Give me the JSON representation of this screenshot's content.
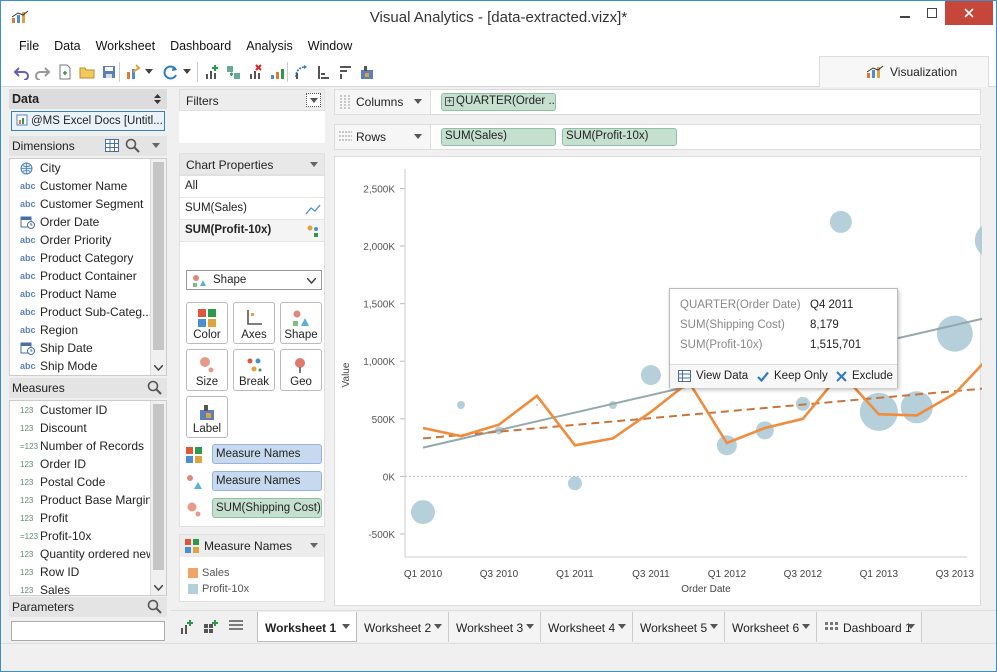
{
  "window": {
    "title": "Visual Analytics - [data-extracted.vizx]*"
  },
  "menu": [
    "File",
    "Data",
    "Worksheet",
    "Dashboard",
    "Analysis",
    "Window"
  ],
  "viz_tab": "Visualization",
  "left": {
    "data_header": "Data",
    "datasource": "@MS Excel Docs [Untitl...",
    "dimensions_header": "Dimensions",
    "dimensions": [
      {
        "type": "geo",
        "label": "City"
      },
      {
        "type": "abc",
        "label": "Customer Name"
      },
      {
        "type": "abc",
        "label": "Customer Segment"
      },
      {
        "type": "date",
        "label": "Order Date"
      },
      {
        "type": "abc",
        "label": "Order Priority"
      },
      {
        "type": "abc",
        "label": "Product Category"
      },
      {
        "type": "abc",
        "label": "Product Container"
      },
      {
        "type": "abc",
        "label": "Product Name"
      },
      {
        "type": "abc",
        "label": "Product Sub-Categ..."
      },
      {
        "type": "abc",
        "label": "Region"
      },
      {
        "type": "date",
        "label": "Ship Date"
      },
      {
        "type": "abc",
        "label": "Ship Mode"
      }
    ],
    "measures_header": "Measures",
    "measures": [
      {
        "type": "123",
        "label": "Customer ID"
      },
      {
        "type": "123",
        "label": "Discount"
      },
      {
        "type": "calc",
        "label": "Number of Records"
      },
      {
        "type": "123",
        "label": "Order ID"
      },
      {
        "type": "123",
        "label": "Postal Code"
      },
      {
        "type": "123",
        "label": "Product Base Margin"
      },
      {
        "type": "123",
        "label": "Profit"
      },
      {
        "type": "calc",
        "label": "Profit-10x"
      },
      {
        "type": "123",
        "label": "Quantity ordered new"
      },
      {
        "type": "123",
        "label": "Row ID"
      },
      {
        "type": "123",
        "label": "Sales"
      }
    ],
    "parameters_header": "Parameters"
  },
  "middle": {
    "filters": "Filters",
    "chart_properties": "Chart Properties",
    "all": "All",
    "sum_sales": "SUM(Sales)",
    "sum_profit": "SUM(Profit-10x)",
    "shape_select": "Shape",
    "marks": {
      "color": "Color",
      "axes": "Axes",
      "shape": "Shape",
      "size": "Size",
      "break": "Break",
      "geo": "Geo",
      "label": "Label"
    },
    "pills": [
      "Measure Names",
      "Measure Names",
      "SUM(Shipping Cost)"
    ],
    "legend_title": "Measure Names",
    "legend": [
      {
        "label": "Sales",
        "color": "#f0a468"
      },
      {
        "label": "Profit-10x",
        "color": "#b3cfd8"
      }
    ]
  },
  "shelves": {
    "columns_label": "Columns",
    "columns_pill": "QUARTER(Order ...",
    "rows_label": "Rows",
    "rows_pills": [
      "SUM(Sales)",
      "SUM(Profit-10x)"
    ]
  },
  "chart_data": {
    "type": "line",
    "xlabel": "Order Date",
    "ylabel": "Value",
    "categories": [
      "Q1 2010",
      "Q2 2010",
      "Q3 2010",
      "Q4 2010",
      "Q1 2011",
      "Q2 2011",
      "Q3 2011",
      "Q4 2011",
      "Q1 2012",
      "Q2 2012",
      "Q3 2012",
      "Q4 2012",
      "Q1 2013",
      "Q2 2013",
      "Q3 2013",
      "Q4 2013"
    ],
    "x_tick_labels": [
      "Q1 2010",
      "Q3 2010",
      "Q1 2011",
      "Q3 2011",
      "Q1 2012",
      "Q3 2012",
      "Q1 2013",
      "Q3 2013"
    ],
    "y_ticks": [
      "2,500K",
      "2,000K",
      "1,500K",
      "1,000K",
      "500K",
      "0K",
      "-500K"
    ],
    "ylim": [
      -700000,
      2600000
    ],
    "series": [
      {
        "name": "Sales",
        "color": "#f08c3c",
        "values": [
          420000,
          350000,
          450000,
          700000,
          270000,
          330000,
          560000,
          820000,
          290000,
          420000,
          500000,
          900000,
          540000,
          530000,
          720000,
          1070000
        ]
      },
      {
        "name": "Profit-10x",
        "color": "#a8c8d4",
        "marks": "circles",
        "values": [
          -310000,
          620000,
          400000,
          620000,
          -60000,
          620000,
          880000,
          1515701,
          270000,
          400000,
          630000,
          2210000,
          560000,
          600000,
          1240000,
          2050000
        ],
        "sizes": [
          12,
          4,
          4,
          1,
          7,
          4,
          10,
          11,
          10,
          9,
          7,
          11,
          19,
          16,
          18,
          18
        ]
      }
    ],
    "trend_lines": [
      {
        "series": "Profit-10x",
        "style": "solid",
        "color": "#94a8ad",
        "from": [
          0,
          250000
        ],
        "to": [
          15,
          1390000
        ]
      },
      {
        "series": "Sales",
        "style": "dashed",
        "color": "#c8753a",
        "from": [
          0,
          330000
        ],
        "to": [
          15,
          770000
        ]
      }
    ]
  },
  "tooltip": {
    "rows": [
      {
        "key": "QUARTER(Order Date)",
        "value": "Q4 2011"
      },
      {
        "key": "SUM(Shipping Cost)",
        "value": "8,179"
      },
      {
        "key": "SUM(Profit-10x)",
        "value": "1,515,701"
      }
    ],
    "view_data": "View Data",
    "keep_only": "Keep Only",
    "exclude": "Exclude"
  },
  "tabs": [
    "Worksheet 1",
    "Worksheet 2",
    "Worksheet 3",
    "Worksheet 4",
    "Worksheet 5",
    "Worksheet 6",
    "Dashboard 1"
  ]
}
